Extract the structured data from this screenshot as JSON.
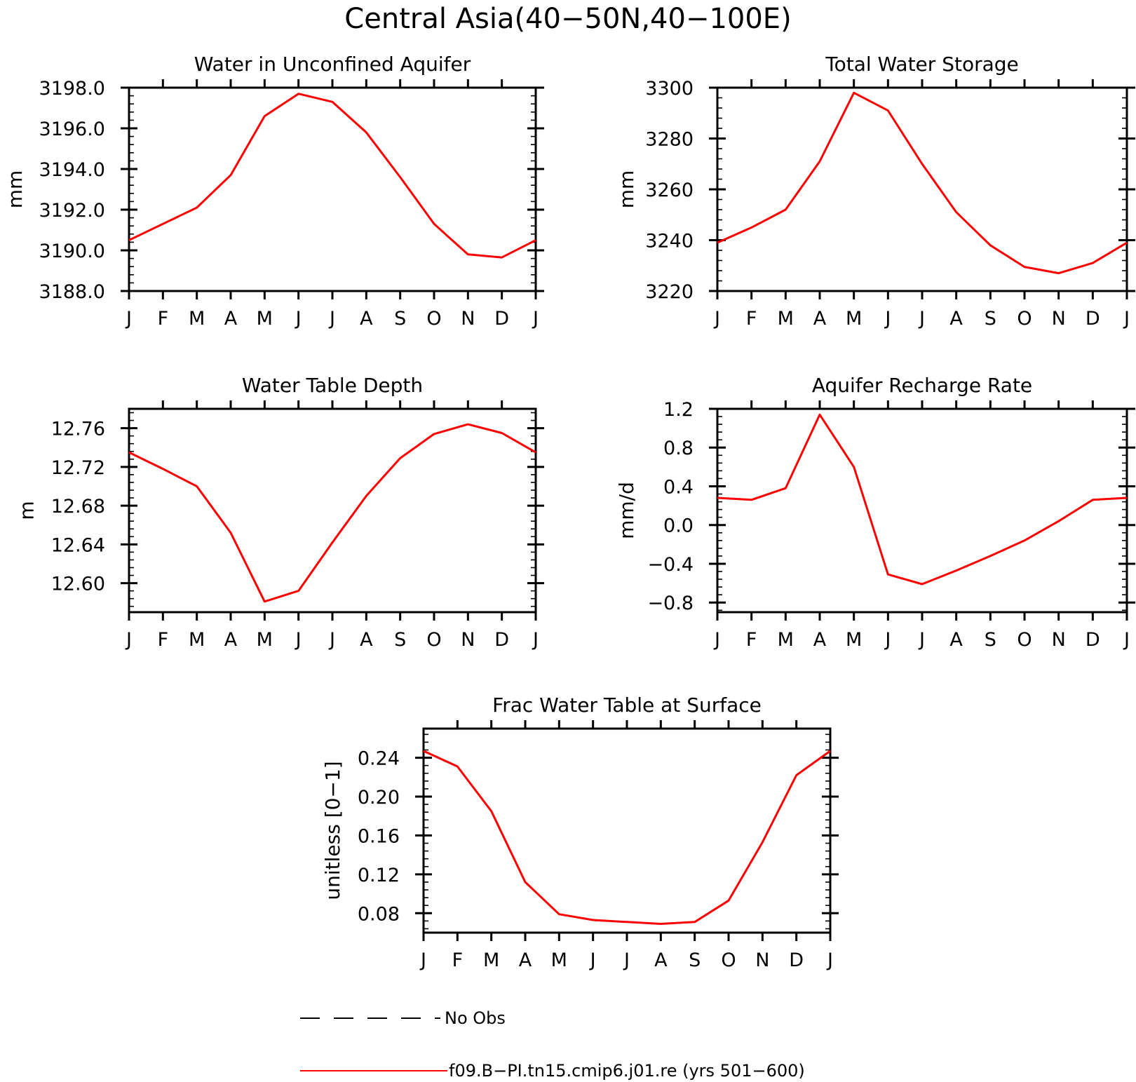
{
  "figure_title": "Central Asia(40−50N,40−100E)",
  "colors": {
    "model": "#ff0000",
    "frame": "#000000",
    "obs": "#000000"
  },
  "legend": {
    "obs_label": "No Obs",
    "model_label": "f09.B−PI.tn15.cmip6.j01.re (yrs 501−600)"
  },
  "chart_data": [
    {
      "type": "line",
      "title": "Water in Unconfined Aquifer",
      "ylabel": "mm",
      "xlabel": "",
      "x": [
        "J",
        "F",
        "M",
        "A",
        "M",
        "J",
        "J",
        "A",
        "S",
        "O",
        "N",
        "D",
        "J"
      ],
      "ylim": [
        3188.0,
        3198.0
      ],
      "yticks": [
        "3198.0",
        "3196.0",
        "3194.0",
        "3192.0",
        "3190.0",
        "3188.0"
      ],
      "ytick_values": [
        3198,
        3196,
        3194,
        3192,
        3190,
        3188
      ],
      "ytick_minor": 0.4,
      "grid": false,
      "series": [
        {
          "values": [
            3190.5,
            3191.3,
            3192.1,
            3193.7,
            3196.6,
            3197.7,
            3197.3,
            3195.8,
            3193.6,
            3191.3,
            3189.8,
            3189.65,
            3190.5
          ]
        }
      ]
    },
    {
      "type": "line",
      "title": "Total Water Storage",
      "ylabel": "mm",
      "xlabel": "",
      "x": [
        "J",
        "F",
        "M",
        "A",
        "M",
        "J",
        "J",
        "A",
        "S",
        "O",
        "N",
        "D",
        "J"
      ],
      "ylim": [
        3220,
        3300
      ],
      "yticks": [
        "3300",
        "3280",
        "3260",
        "3240",
        "3220"
      ],
      "ytick_values": [
        3300,
        3280,
        3260,
        3240,
        3220
      ],
      "ytick_minor": 4,
      "grid": false,
      "series": [
        {
          "values": [
            3239,
            3245,
            3252,
            3271,
            3298,
            3291,
            3270,
            3251,
            3238,
            3229.5,
            3227,
            3231,
            3239
          ]
        }
      ]
    },
    {
      "type": "line",
      "title": "Water Table Depth",
      "ylabel": "m",
      "xlabel": "",
      "x": [
        "J",
        "F",
        "M",
        "A",
        "M",
        "J",
        "J",
        "A",
        "S",
        "O",
        "N",
        "D",
        "J"
      ],
      "ylim": [
        12.57,
        12.78
      ],
      "yticks": [
        "12.76",
        "12.72",
        "12.68",
        "12.64",
        "12.60"
      ],
      "ytick_values": [
        12.76,
        12.72,
        12.68,
        12.64,
        12.6
      ],
      "ytick_minor": 0.008,
      "grid": false,
      "series": [
        {
          "values": [
            12.735,
            12.718,
            12.7,
            12.652,
            12.581,
            12.592,
            12.642,
            12.69,
            12.729,
            12.754,
            12.764,
            12.755,
            12.735
          ]
        }
      ]
    },
    {
      "type": "line",
      "title": "Aquifer Recharge Rate",
      "ylabel": "mm/d",
      "xlabel": "",
      "x": [
        "J",
        "F",
        "M",
        "A",
        "M",
        "J",
        "J",
        "A",
        "S",
        "O",
        "N",
        "D",
        "J"
      ],
      "ylim": [
        -0.9,
        1.2
      ],
      "yticks": [
        "1.2",
        "0.8",
        "0.4",
        "0.0",
        "−0.4",
        "−0.8"
      ],
      "ytick_values": [
        1.2,
        0.8,
        0.4,
        0.0,
        -0.4,
        -0.8
      ],
      "ytick_minor": 0.08,
      "grid": false,
      "series": [
        {
          "values": [
            0.28,
            0.26,
            0.38,
            1.14,
            0.6,
            -0.51,
            -0.61,
            -0.47,
            -0.32,
            -0.16,
            0.04,
            0.26,
            0.28
          ]
        }
      ]
    },
    {
      "type": "line",
      "title": "Frac Water Table at Surface",
      "ylabel": "unitless [0−1]",
      "xlabel": "",
      "x": [
        "J",
        "F",
        "M",
        "A",
        "M",
        "J",
        "J",
        "A",
        "S",
        "O",
        "N",
        "D",
        "J"
      ],
      "ylim": [
        0.06,
        0.27
      ],
      "yticks": [
        "0.24",
        "0.20",
        "0.16",
        "0.12",
        "0.08"
      ],
      "ytick_values": [
        0.24,
        0.2,
        0.16,
        0.12,
        0.08
      ],
      "ytick_minor": 0.008,
      "grid": false,
      "series": [
        {
          "values": [
            0.247,
            0.231,
            0.185,
            0.112,
            0.079,
            0.073,
            0.071,
            0.069,
            0.071,
            0.093,
            0.153,
            0.222,
            0.247
          ]
        }
      ]
    }
  ]
}
